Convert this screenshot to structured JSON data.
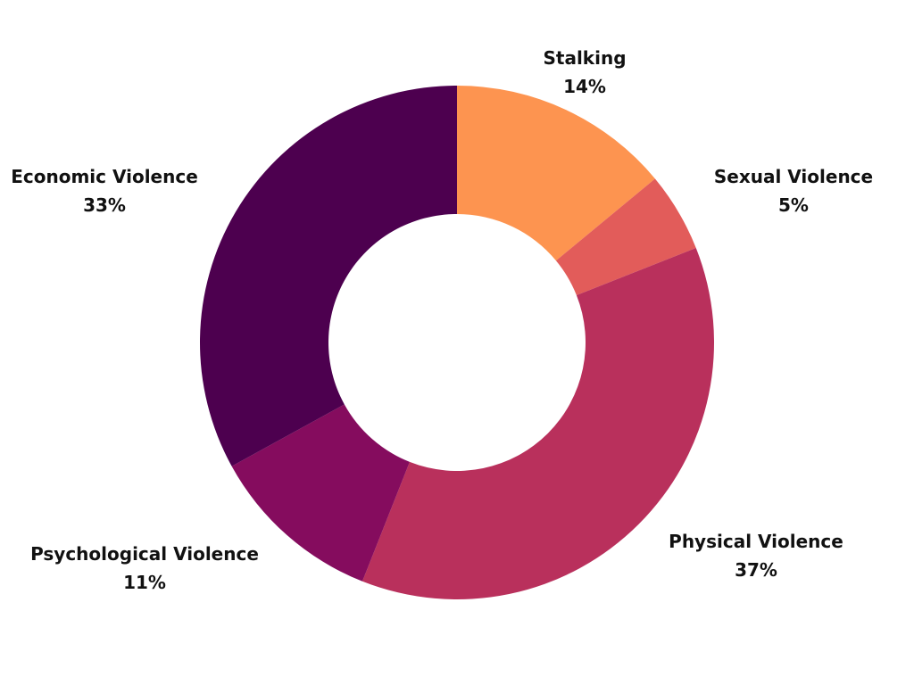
{
  "chart_data": {
    "type": "pie",
    "donut": true,
    "title": "",
    "categories": [
      "Stalking",
      "Sexual Violence",
      "Physical Violence",
      "Psychological Violence",
      "Economic Violence"
    ],
    "values": [
      14,
      5,
      37,
      11,
      33
    ],
    "value_labels": [
      "14%",
      "5%",
      "37%",
      "11%",
      "33%"
    ],
    "colors": [
      "#fd9450",
      "#e25c5a",
      "#b9305c",
      "#850c5e",
      "#4d004f"
    ],
    "legend": "none"
  }
}
